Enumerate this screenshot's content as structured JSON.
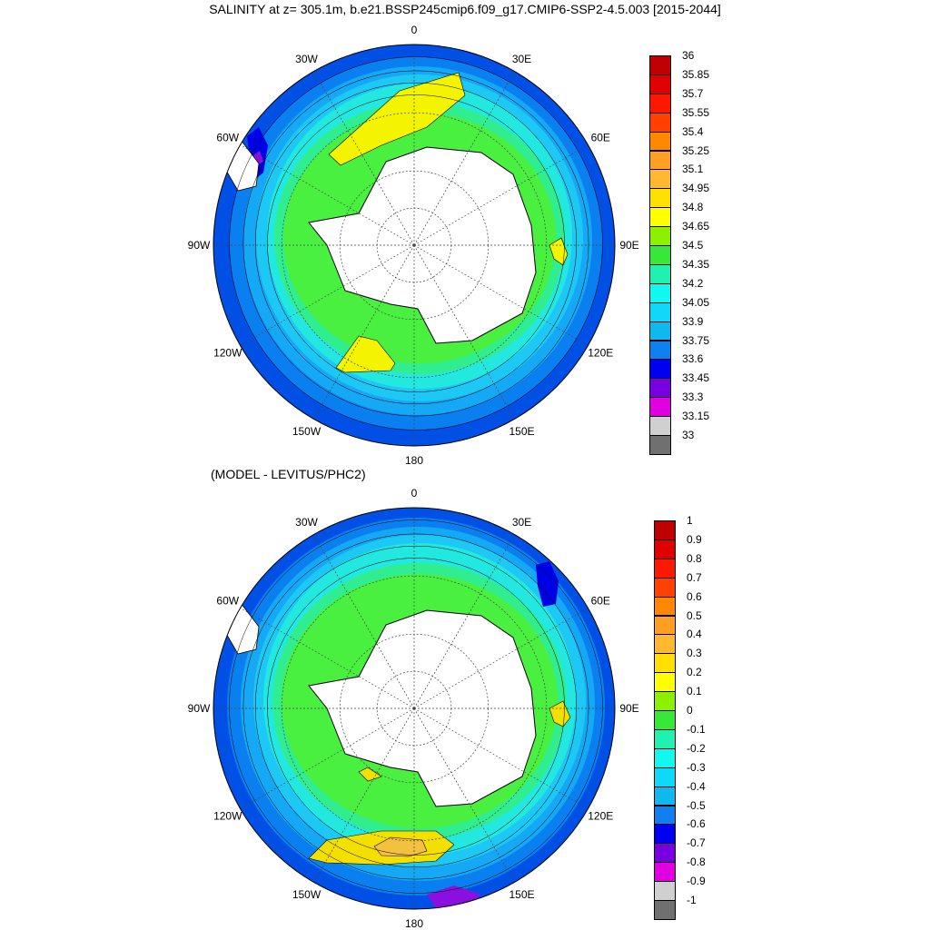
{
  "title": "SALINITY at z= 305.1m, b.e21.BSSP245cmip6.f09_g17.CMIP6-SSP2-4.5.003 [2015-2044]",
  "subtitle": "(MODEL - LEVITUS/PHC2)",
  "lon_labels": [
    "0",
    "30E",
    "60E",
    "90E",
    "120E",
    "150E",
    "180",
    "150W",
    "120W",
    "90W",
    "60W",
    "30W"
  ],
  "colors": {
    "land": "#ffffff",
    "ocean_ring": [
      "#0050e6",
      "#0a80f0",
      "#14a8f5",
      "#1ec8f5",
      "#22e8e0",
      "#30ee90",
      "#4af040",
      "#7cf020"
    ],
    "top_high": "#f4f400",
    "diff_high": "#f4e000",
    "diff_peak": "#f4c040",
    "low_patch": "#8a10e0"
  },
  "colorbar_top": {
    "labels": [
      "36",
      "35.85",
      "35.7",
      "35.55",
      "35.4",
      "35.25",
      "35.1",
      "34.95",
      "34.8",
      "34.65",
      "34.5",
      "34.35",
      "34.2",
      "34.05",
      "33.9",
      "33.75",
      "33.6",
      "33.45",
      "33.3",
      "33.15",
      "33"
    ],
    "colors": [
      "#c00000",
      "#e00000",
      "#ff1800",
      "#ff4000",
      "#ff8800",
      "#ffa020",
      "#ffb830",
      "#ffe000",
      "#ffff00",
      "#8cf000",
      "#38e838",
      "#20f0b0",
      "#10f8f0",
      "#10d8f8",
      "#10b8f0",
      "#1080f0",
      "#0000f0",
      "#7800e0",
      "#e000e0",
      "#d0d0d0",
      "#707070"
    ]
  },
  "colorbar_diff": {
    "labels": [
      "1",
      "0.9",
      "0.8",
      "0.7",
      "0.6",
      "0.5",
      "0.4",
      "0.3",
      "0.2",
      "0.1",
      "0",
      "-0.1",
      "-0.2",
      "-0.3",
      "-0.4",
      "-0.5",
      "-0.6",
      "-0.7",
      "-0.8",
      "-0.9",
      "-1"
    ],
    "colors": [
      "#c00000",
      "#e00000",
      "#ff1800",
      "#ff4000",
      "#ff8800",
      "#ffa020",
      "#ffb830",
      "#ffe000",
      "#ffff00",
      "#8cf000",
      "#38e838",
      "#20f0b0",
      "#10f8f0",
      "#10d8f8",
      "#10b8f0",
      "#1080f0",
      "#0000f0",
      "#7800e0",
      "#e000e0",
      "#d0d0d0",
      "#707070"
    ]
  }
}
